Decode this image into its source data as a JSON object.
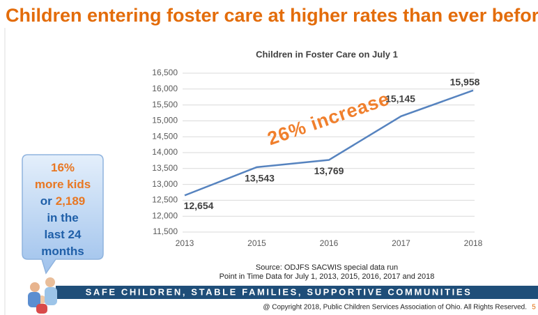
{
  "slide": {
    "title": "Children entering foster care at higher rates than ever before",
    "callout": {
      "lines": [
        [
          {
            "text": "16%",
            "color": "#e87722"
          }
        ],
        [
          {
            "text": "more kids",
            "color": "#e87722"
          }
        ],
        [
          {
            "text": "or",
            "color": "#1f5fa8"
          },
          {
            "text": "2,189",
            "color": "#e87722"
          }
        ],
        [
          {
            "text": "in the",
            "color": "#1f5fa8"
          }
        ],
        [
          {
            "text": "last 24",
            "color": "#1f5fa8"
          }
        ],
        [
          {
            "text": "months",
            "color": "#1f5fa8"
          }
        ]
      ]
    },
    "source": [
      "Source: ODJFS SACWIS special data run",
      "Point in Time Data for July 1, 2013, 2015, 2016, 2017 and 2018"
    ],
    "banner": "SAFE CHILDREN, STABLE FAMILIES, SUPPORTIVE COMMUNITIES",
    "copyright": "@ Copyright 2018, Public Children Services Association of Ohio. All Rights Reserved.",
    "page_number": "5"
  },
  "chart_data": {
    "type": "line",
    "title": "Children in Foster Care on July 1",
    "annotation": "26% increase",
    "categories": [
      "2013",
      "2015",
      "2016",
      "2017",
      "2018"
    ],
    "values": [
      12654,
      13543,
      13769,
      15145,
      15958
    ],
    "value_labels": [
      "12,654",
      "13,543",
      "13,769",
      "15,145",
      "15,958"
    ],
    "color": "#5683bf",
    "ylim": [
      11500,
      16500
    ],
    "yticks": [
      {
        "value": 11500,
        "label": "11,500"
      },
      {
        "value": 12000,
        "label": "12,000"
      },
      {
        "value": 12500,
        "label": "12,500"
      },
      {
        "value": 13000,
        "label": "13,000"
      },
      {
        "value": 13500,
        "label": "13,500"
      },
      {
        "value": 14000,
        "label": "14,000"
      },
      {
        "value": 14500,
        "label": "14,500"
      },
      {
        "value": 15000,
        "label": "15,000"
      },
      {
        "value": 15500,
        "label": "15,500"
      },
      {
        "value": 16000,
        "label": "16,000"
      },
      {
        "value": 16500,
        "label": "16,500"
      }
    ],
    "grid": true
  }
}
